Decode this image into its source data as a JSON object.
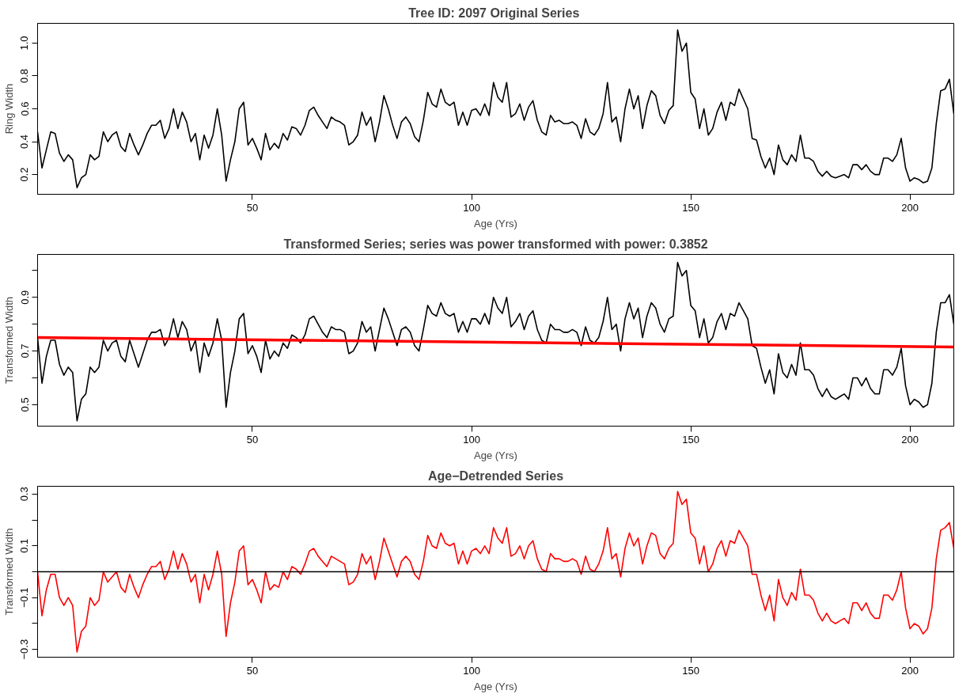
{
  "chart_data": [
    {
      "type": "line",
      "title": "Tree ID:  2097 Original Series",
      "xlabel": "Age (Yrs)",
      "ylabel": "Ring Width",
      "grid": false,
      "xlim": [
        1,
        210
      ],
      "xticks": [
        50,
        100,
        150,
        200
      ],
      "ylim": [
        0.08,
        1.12
      ],
      "yticks": [
        0.2,
        0.4,
        0.6,
        0.8,
        {
          "value": 1.0,
          "label": "1.0"
        }
      ],
      "x": [
        1,
        2,
        3,
        4,
        5,
        6,
        7,
        8,
        9,
        10,
        11,
        12,
        13,
        14,
        15,
        16,
        17,
        18,
        19,
        20,
        21,
        22,
        23,
        24,
        25,
        26,
        27,
        28,
        29,
        30,
        31,
        32,
        33,
        34,
        35,
        36,
        37,
        38,
        39,
        40,
        41,
        42,
        43,
        44,
        45,
        46,
        47,
        48,
        49,
        50,
        51,
        52,
        53,
        54,
        55,
        56,
        57,
        58,
        59,
        60,
        61,
        62,
        63,
        64,
        65,
        66,
        67,
        68,
        69,
        70,
        71,
        72,
        73,
        74,
        75,
        76,
        77,
        78,
        79,
        80,
        81,
        82,
        83,
        84,
        85,
        86,
        87,
        88,
        89,
        90,
        91,
        92,
        93,
        94,
        95,
        96,
        97,
        98,
        99,
        100,
        101,
        102,
        103,
        104,
        105,
        106,
        107,
        108,
        109,
        110,
        111,
        112,
        113,
        114,
        115,
        116,
        117,
        118,
        119,
        120,
        121,
        122,
        123,
        124,
        125,
        126,
        127,
        128,
        129,
        130,
        131,
        132,
        133,
        134,
        135,
        136,
        137,
        138,
        139,
        140,
        141,
        142,
        143,
        144,
        145,
        146,
        147,
        148,
        149,
        150,
        151,
        152,
        153,
        154,
        155,
        156,
        157,
        158,
        159,
        160,
        161,
        162,
        163,
        164,
        165,
        166,
        167,
        168,
        169,
        170,
        171,
        172,
        173,
        174,
        175,
        176,
        177,
        178,
        179,
        180,
        181,
        182,
        183,
        184,
        185,
        186,
        187,
        188,
        189,
        190,
        191,
        192,
        193,
        194,
        195,
        196,
        197,
        198,
        199,
        200,
        201,
        202,
        203,
        204,
        205,
        206,
        207,
        208,
        209,
        210
      ],
      "series": [
        {
          "color": "#000000",
          "values": [
            0.46,
            0.24,
            0.35,
            0.46,
            0.45,
            0.33,
            0.28,
            0.32,
            0.29,
            0.12,
            0.18,
            0.2,
            0.32,
            0.29,
            0.31,
            0.46,
            0.4,
            0.44,
            0.46,
            0.37,
            0.34,
            0.45,
            0.38,
            0.32,
            0.38,
            0.45,
            0.5,
            0.5,
            0.53,
            0.42,
            0.48,
            0.6,
            0.48,
            0.58,
            0.52,
            0.4,
            0.45,
            0.29,
            0.44,
            0.36,
            0.44,
            0.6,
            0.44,
            0.16,
            0.29,
            0.4,
            0.6,
            0.64,
            0.38,
            0.42,
            0.36,
            0.29,
            0.45,
            0.35,
            0.39,
            0.36,
            0.45,
            0.41,
            0.49,
            0.48,
            0.44,
            0.5,
            0.59,
            0.61,
            0.56,
            0.52,
            0.48,
            0.55,
            0.53,
            0.52,
            0.5,
            0.38,
            0.4,
            0.44,
            0.58,
            0.5,
            0.55,
            0.4,
            0.52,
            0.68,
            0.6,
            0.5,
            0.42,
            0.52,
            0.55,
            0.51,
            0.43,
            0.4,
            0.53,
            0.7,
            0.63,
            0.61,
            0.72,
            0.64,
            0.62,
            0.64,
            0.5,
            0.58,
            0.5,
            0.59,
            0.6,
            0.56,
            0.63,
            0.56,
            0.76,
            0.67,
            0.64,
            0.76,
            0.55,
            0.57,
            0.63,
            0.53,
            0.61,
            0.65,
            0.53,
            0.46,
            0.44,
            0.56,
            0.52,
            0.53,
            0.51,
            0.51,
            0.52,
            0.5,
            0.42,
            0.54,
            0.46,
            0.44,
            0.48,
            0.57,
            0.76,
            0.52,
            0.55,
            0.4,
            0.6,
            0.72,
            0.6,
            0.68,
            0.48,
            0.62,
            0.71,
            0.68,
            0.56,
            0.51,
            0.59,
            0.62,
            1.08,
            0.95,
            1.0,
            0.7,
            0.66,
            0.48,
            0.6,
            0.44,
            0.48,
            0.58,
            0.64,
            0.53,
            0.64,
            0.62,
            0.72,
            0.66,
            0.6,
            0.42,
            0.41,
            0.31,
            0.24,
            0.3,
            0.2,
            0.38,
            0.29,
            0.26,
            0.32,
            0.28,
            0.44,
            0.3,
            0.3,
            0.28,
            0.22,
            0.19,
            0.22,
            0.19,
            0.18,
            0.19,
            0.2,
            0.18,
            0.26,
            0.26,
            0.23,
            0.26,
            0.22,
            0.2,
            0.2,
            0.3,
            0.3,
            0.28,
            0.32,
            0.42,
            0.24,
            0.16,
            0.18,
            0.17,
            0.15,
            0.16,
            0.24,
            0.51,
            0.71,
            0.72,
            0.78,
            0.57
          ]
        }
      ]
    },
    {
      "type": "line",
      "title": "Transformed Series; series was power transformed with power: 0.3852",
      "xlabel": "Age (Yrs)",
      "ylabel": "Transformed Width",
      "grid": false,
      "xlim": [
        1,
        210
      ],
      "xticks": [
        50,
        100,
        150,
        200
      ],
      "ylim": [
        0.42,
        1.06
      ],
      "yticks": [
        0.5,
        {
          "value": 0.6,
          "label": null
        },
        0.7,
        {
          "value": 0.8,
          "label": null
        },
        0.9,
        {
          "value": 1.0,
          "label": null
        }
      ],
      "x": [
        1,
        2,
        3,
        4,
        5,
        6,
        7,
        8,
        9,
        10,
        11,
        12,
        13,
        14,
        15,
        16,
        17,
        18,
        19,
        20,
        21,
        22,
        23,
        24,
        25,
        26,
        27,
        28,
        29,
        30,
        31,
        32,
        33,
        34,
        35,
        36,
        37,
        38,
        39,
        40,
        41,
        42,
        43,
        44,
        45,
        46,
        47,
        48,
        49,
        50,
        51,
        52,
        53,
        54,
        55,
        56,
        57,
        58,
        59,
        60,
        61,
        62,
        63,
        64,
        65,
        66,
        67,
        68,
        69,
        70,
        71,
        72,
        73,
        74,
        75,
        76,
        77,
        78,
        79,
        80,
        81,
        82,
        83,
        84,
        85,
        86,
        87,
        88,
        89,
        90,
        91,
        92,
        93,
        94,
        95,
        96,
        97,
        98,
        99,
        100,
        101,
        102,
        103,
        104,
        105,
        106,
        107,
        108,
        109,
        110,
        111,
        112,
        113,
        114,
        115,
        116,
        117,
        118,
        119,
        120,
        121,
        122,
        123,
        124,
        125,
        126,
        127,
        128,
        129,
        130,
        131,
        132,
        133,
        134,
        135,
        136,
        137,
        138,
        139,
        140,
        141,
        142,
        143,
        144,
        145,
        146,
        147,
        148,
        149,
        150,
        151,
        152,
        153,
        154,
        155,
        156,
        157,
        158,
        159,
        160,
        161,
        162,
        163,
        164,
        165,
        166,
        167,
        168,
        169,
        170,
        171,
        172,
        173,
        174,
        175,
        176,
        177,
        178,
        179,
        180,
        181,
        182,
        183,
        184,
        185,
        186,
        187,
        188,
        189,
        190,
        191,
        192,
        193,
        194,
        195,
        196,
        197,
        198,
        199,
        200,
        201,
        202,
        203,
        204,
        205,
        206,
        207,
        208,
        209,
        210
      ],
      "series": [
        {
          "color": "#000000",
          "values": [
            0.75,
            0.58,
            0.68,
            0.74,
            0.74,
            0.65,
            0.61,
            0.64,
            0.62,
            0.44,
            0.52,
            0.54,
            0.64,
            0.62,
            0.64,
            0.74,
            0.7,
            0.73,
            0.74,
            0.68,
            0.66,
            0.74,
            0.69,
            0.64,
            0.69,
            0.74,
            0.77,
            0.77,
            0.78,
            0.72,
            0.75,
            0.82,
            0.75,
            0.81,
            0.78,
            0.7,
            0.74,
            0.62,
            0.73,
            0.68,
            0.73,
            0.82,
            0.74,
            0.49,
            0.62,
            0.7,
            0.82,
            0.84,
            0.69,
            0.72,
            0.68,
            0.62,
            0.74,
            0.67,
            0.7,
            0.68,
            0.73,
            0.71,
            0.76,
            0.75,
            0.73,
            0.76,
            0.82,
            0.83,
            0.8,
            0.77,
            0.75,
            0.79,
            0.78,
            0.78,
            0.77,
            0.69,
            0.7,
            0.73,
            0.81,
            0.77,
            0.79,
            0.7,
            0.78,
            0.86,
            0.82,
            0.77,
            0.72,
            0.78,
            0.79,
            0.77,
            0.72,
            0.7,
            0.78,
            0.87,
            0.84,
            0.83,
            0.88,
            0.84,
            0.83,
            0.84,
            0.77,
            0.81,
            0.77,
            0.82,
            0.82,
            0.8,
            0.84,
            0.8,
            0.9,
            0.86,
            0.84,
            0.9,
            0.79,
            0.81,
            0.84,
            0.78,
            0.83,
            0.85,
            0.78,
            0.74,
            0.73,
            0.8,
            0.78,
            0.78,
            0.77,
            0.77,
            0.78,
            0.77,
            0.72,
            0.79,
            0.74,
            0.73,
            0.75,
            0.81,
            0.9,
            0.78,
            0.8,
            0.7,
            0.82,
            0.88,
            0.82,
            0.86,
            0.75,
            0.83,
            0.88,
            0.86,
            0.8,
            0.77,
            0.82,
            0.83,
            1.03,
            0.98,
            1.0,
            0.87,
            0.85,
            0.75,
            0.82,
            0.73,
            0.75,
            0.81,
            0.84,
            0.78,
            0.84,
            0.83,
            0.88,
            0.85,
            0.82,
            0.72,
            0.71,
            0.64,
            0.58,
            0.63,
            0.54,
            0.69,
            0.62,
            0.6,
            0.65,
            0.61,
            0.73,
            0.63,
            0.63,
            0.61,
            0.56,
            0.53,
            0.56,
            0.53,
            0.52,
            0.53,
            0.54,
            0.52,
            0.6,
            0.6,
            0.57,
            0.6,
            0.56,
            0.54,
            0.54,
            0.63,
            0.63,
            0.61,
            0.64,
            0.71,
            0.57,
            0.5,
            0.52,
            0.51,
            0.49,
            0.5,
            0.58,
            0.77,
            0.88,
            0.88,
            0.91,
            0.8
          ]
        },
        {
          "type": "line",
          "color": "#ff0000",
          "x": [
            1,
            210
          ],
          "values": [
            0.75,
            0.715
          ]
        }
      ]
    },
    {
      "type": "line",
      "title": "Age−Detrended Series",
      "xlabel": "Age (Yrs)",
      "ylabel": "Transformed Width",
      "grid": false,
      "xlim": [
        1,
        210
      ],
      "xticks": [
        50,
        100,
        150,
        200
      ],
      "ylim": [
        -0.33,
        0.33
      ],
      "yticks": [
        {
          "value": -0.3,
          "label": "−0.3"
        },
        {
          "value": -0.2,
          "label": null
        },
        {
          "value": -0.1,
          "label": "−0.1"
        },
        {
          "value": 0.0,
          "label": null
        },
        0.1,
        {
          "value": 0.2,
          "label": null
        },
        0.3
      ],
      "ref_lines": [
        {
          "axis": "y",
          "value": 0,
          "color": "#000000"
        }
      ],
      "x": [
        1,
        2,
        3,
        4,
        5,
        6,
        7,
        8,
        9,
        10,
        11,
        12,
        13,
        14,
        15,
        16,
        17,
        18,
        19,
        20,
        21,
        22,
        23,
        24,
        25,
        26,
        27,
        28,
        29,
        30,
        31,
        32,
        33,
        34,
        35,
        36,
        37,
        38,
        39,
        40,
        41,
        42,
        43,
        44,
        45,
        46,
        47,
        48,
        49,
        50,
        51,
        52,
        53,
        54,
        55,
        56,
        57,
        58,
        59,
        60,
        61,
        62,
        63,
        64,
        65,
        66,
        67,
        68,
        69,
        70,
        71,
        72,
        73,
        74,
        75,
        76,
        77,
        78,
        79,
        80,
        81,
        82,
        83,
        84,
        85,
        86,
        87,
        88,
        89,
        90,
        91,
        92,
        93,
        94,
        95,
        96,
        97,
        98,
        99,
        100,
        101,
        102,
        103,
        104,
        105,
        106,
        107,
        108,
        109,
        110,
        111,
        112,
        113,
        114,
        115,
        116,
        117,
        118,
        119,
        120,
        121,
        122,
        123,
        124,
        125,
        126,
        127,
        128,
        129,
        130,
        131,
        132,
        133,
        134,
        135,
        136,
        137,
        138,
        139,
        140,
        141,
        142,
        143,
        144,
        145,
        146,
        147,
        148,
        149,
        150,
        151,
        152,
        153,
        154,
        155,
        156,
        157,
        158,
        159,
        160,
        161,
        162,
        163,
        164,
        165,
        166,
        167,
        168,
        169,
        170,
        171,
        172,
        173,
        174,
        175,
        176,
        177,
        178,
        179,
        180,
        181,
        182,
        183,
        184,
        185,
        186,
        187,
        188,
        189,
        190,
        191,
        192,
        193,
        194,
        195,
        196,
        197,
        198,
        199,
        200,
        201,
        202,
        203,
        204,
        205,
        206,
        207,
        208,
        209,
        210
      ],
      "series": [
        {
          "color": "#ff0000",
          "values": [
            0.0,
            -0.17,
            -0.07,
            -0.01,
            -0.01,
            -0.1,
            -0.13,
            -0.1,
            -0.13,
            -0.31,
            -0.23,
            -0.21,
            -0.1,
            -0.13,
            -0.11,
            0.0,
            -0.04,
            -0.02,
            0.0,
            -0.06,
            -0.08,
            -0.01,
            -0.06,
            -0.1,
            -0.05,
            -0.01,
            0.02,
            0.02,
            0.04,
            -0.03,
            0.01,
            0.08,
            0.01,
            0.07,
            0.03,
            -0.04,
            -0.01,
            -0.12,
            -0.01,
            -0.07,
            -0.01,
            0.08,
            -0.01,
            -0.25,
            -0.12,
            -0.04,
            0.08,
            0.1,
            -0.05,
            -0.03,
            -0.07,
            -0.12,
            0.0,
            -0.07,
            -0.05,
            -0.06,
            0.0,
            -0.03,
            0.02,
            0.01,
            -0.01,
            0.03,
            0.08,
            0.09,
            0.06,
            0.04,
            0.02,
            0.06,
            0.05,
            0.04,
            0.03,
            -0.05,
            -0.04,
            -0.01,
            0.07,
            0.03,
            0.06,
            -0.03,
            0.04,
            0.13,
            0.08,
            0.03,
            -0.02,
            0.04,
            0.06,
            0.04,
            -0.01,
            -0.03,
            0.04,
            0.14,
            0.1,
            0.09,
            0.15,
            0.11,
            0.1,
            0.11,
            0.03,
            0.08,
            0.03,
            0.08,
            0.09,
            0.07,
            0.1,
            0.07,
            0.17,
            0.13,
            0.11,
            0.17,
            0.06,
            0.07,
            0.1,
            0.05,
            0.1,
            0.12,
            0.05,
            0.01,
            0.0,
            0.07,
            0.05,
            0.05,
            0.04,
            0.04,
            0.05,
            0.04,
            -0.01,
            0.06,
            0.01,
            0.0,
            0.03,
            0.08,
            0.17,
            0.05,
            0.07,
            -0.02,
            0.09,
            0.15,
            0.1,
            0.13,
            0.03,
            0.1,
            0.15,
            0.14,
            0.07,
            0.05,
            0.09,
            0.11,
            0.31,
            0.26,
            0.28,
            0.15,
            0.13,
            0.03,
            0.1,
            0.0,
            0.03,
            0.09,
            0.12,
            0.06,
            0.12,
            0.11,
            0.16,
            0.13,
            0.1,
            -0.01,
            -0.01,
            -0.09,
            -0.15,
            -0.09,
            -0.19,
            -0.03,
            -0.1,
            -0.13,
            -0.08,
            -0.11,
            0.01,
            -0.09,
            -0.09,
            -0.11,
            -0.16,
            -0.19,
            -0.16,
            -0.19,
            -0.2,
            -0.19,
            -0.18,
            -0.2,
            -0.12,
            -0.12,
            -0.15,
            -0.12,
            -0.16,
            -0.18,
            -0.18,
            -0.09,
            -0.09,
            -0.11,
            -0.07,
            0.0,
            -0.14,
            -0.22,
            -0.2,
            -0.21,
            -0.24,
            -0.22,
            -0.14,
            0.05,
            0.16,
            0.17,
            0.19,
            0.09
          ]
        }
      ]
    }
  ]
}
